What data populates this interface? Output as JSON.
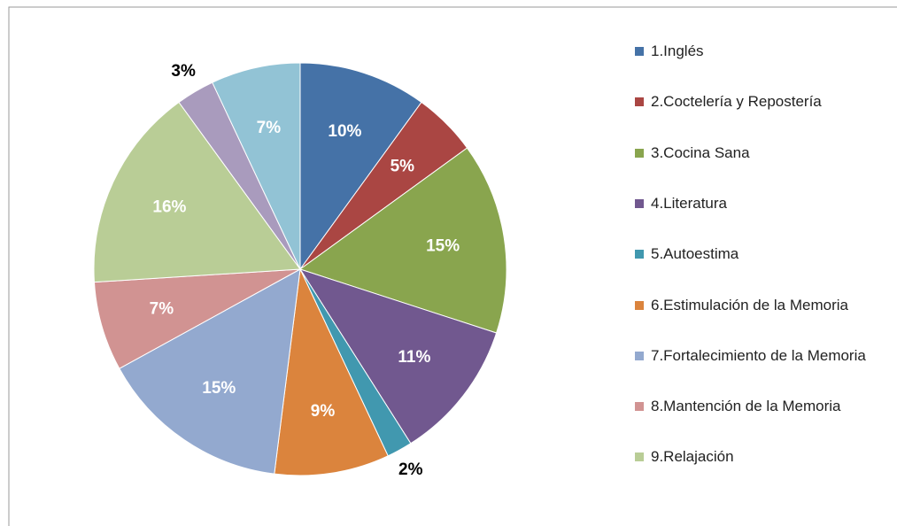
{
  "chart_data": {
    "type": "pie",
    "categories": [
      "1.Inglés",
      "2.Coctelería y Repostería",
      "3.Cocina Sana",
      "4.Literatura",
      "5.Autoestima",
      "6.Estimulación de la Memoria",
      "7.Fortalecimiento de la Memoria",
      "8.Mantención de la Memoria",
      "9.Relajación",
      null,
      null
    ],
    "values": [
      10,
      5,
      15,
      11,
      2,
      9,
      15,
      7,
      16,
      3,
      7
    ],
    "value_labels": [
      "10%",
      "5%",
      "15%",
      "11%",
      "2%",
      "9%",
      "15%",
      "7%",
      "16%",
      "3%",
      "7%"
    ],
    "colors": [
      "#4572a7",
      "#aa4643",
      "#89a54e",
      "#71588f",
      "#4198af",
      "#db843d",
      "#93a9cf",
      "#d19392",
      "#b9cd96",
      "#a99bbd",
      "#92c3d5"
    ],
    "legend": "right"
  }
}
